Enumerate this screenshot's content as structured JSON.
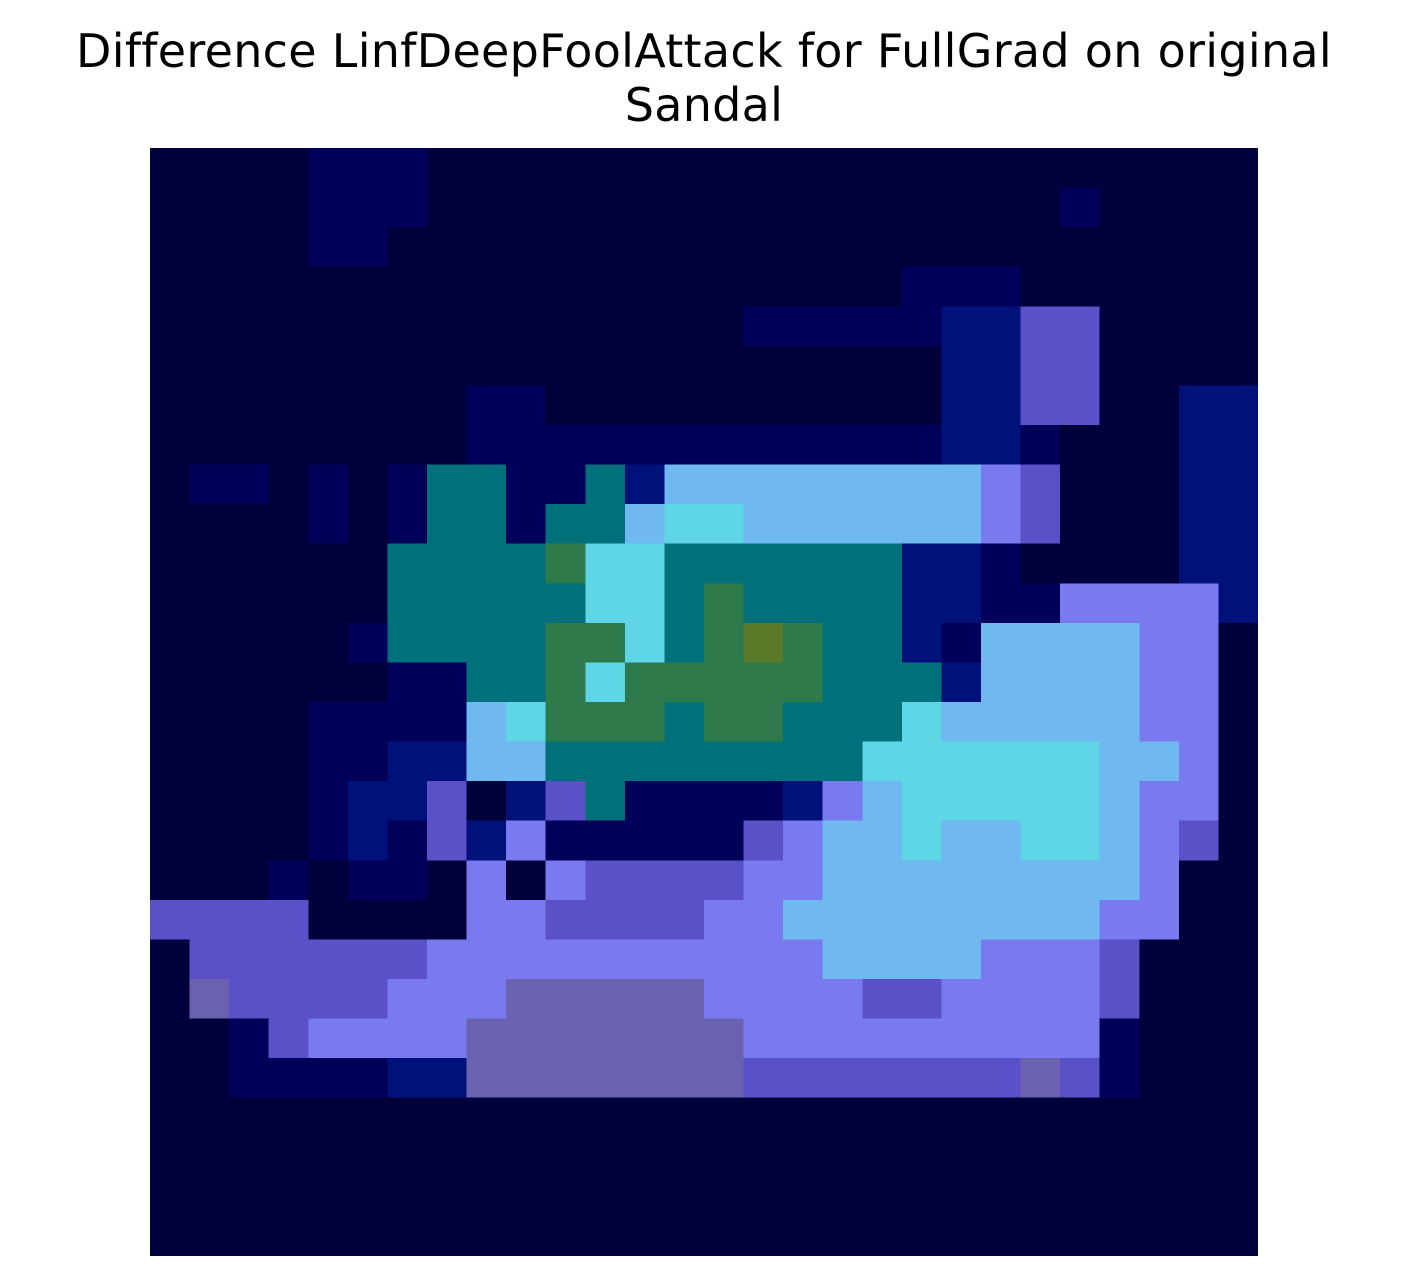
{
  "title": {
    "line1": "Difference LinfDeepFoolAttack for FullGrad on original",
    "line2": "Sandal"
  },
  "image": {
    "description_icon": "heatmap-overlay-image",
    "grid_size": 28,
    "palette": {
      "dark_navy": "#00003a",
      "deep_blue": "#00005a",
      "blue": "#00127a",
      "teal": "#00707a",
      "green": "#2e7a4a",
      "olive": "#5a7a2a",
      "cyan": "#5ed6e6",
      "bright_cyan": "#80ffff",
      "light_blue": "#6fb8f0",
      "periwinkle": "#7a7af0",
      "violet": "#5a50c8",
      "muted_violet": "#6a62b0"
    },
    "rows": [
      "DDDDBBBDDDDDDDDDDDDDDDDDDDDD",
      "DDDDBBBDDDDDDDDDDDDDDDDBDDDD",
      "DDDDBBDDDDDDDDDDDDDDDDDDDDDD",
      "DDDDDDDDDDDDDDDDDDDBBBDDDDDD",
      "DDDDDDDDDDDDDDDBBBBBNNrrDDDD",
      "DDDDDDDDDDDDDDDDDDDDNNvvDDDD",
      "DDDDDDDDBBDDDDDDDDDDNNvvDDNN",
      "DDDDDDDDBBBBBBBBBBBBNNBDDDNN",
      "DBBDBDBTTBBTNLLLLLLLLpvDDDNN",
      "DDDDBDBTTBTTLCCLLLLLLpvDDDNN",
      "DDDDDDTTTTGCCTTTTTTNNBDDDDNN",
      "DDDDDDTTTTTCCTGTTTTNNBBppppN",
      "DDDDDBTTTTGGCTGOGTTNBLLLLppD",
      "DDDDDDBBTTGCGGGGGTTTNLLLLppD",
      "DDDDBBBBLCGGGTGGTTTCLLLLLppD",
      "DDDDBBNNLLTTTTTTTTCCCCCCLLpD",
      "DDDDBNNvDNvTBBBBNpLCCCCCLppD",
      "DDDDBNBvNpBBBBBvpLLCLLCCLpvD",
      "DDDBDBBDpDpvvvvppLLLLLLLLpDD",
      "vvvvDDDDppvvvvppLLLLLLLLppDD",
      "DvvvvvvppppppppppLLLLpppvDDD",
      "DMvvvvpppMMMMMppppvvppppvDDD",
      "DDBvppppMMMMMMMpppppppppBDDD",
      "DDBBBBNNMMMMMMMvvvvvvvMvBDDD",
      "DDDDDDDDDDDDDDDDDDDDDDDDDDDD",
      "DDDDDDDDDDDDDDDDDDDDDDDDDDDD",
      "DDDDDDDDDDDDDDDDDDDDDDDDDDDD",
      "DDDDDDDDDDDDDDDDDDDDDDDDDDDD"
    ]
  }
}
